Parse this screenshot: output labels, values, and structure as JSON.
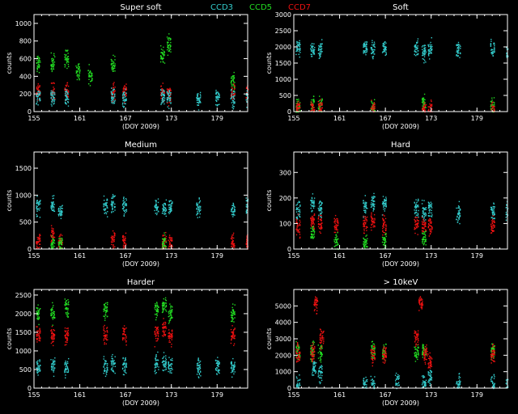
{
  "legend": [
    {
      "label": "CCD3",
      "color": "#33cccc"
    },
    {
      "label": "CCD5",
      "color": "#22dd22"
    },
    {
      "label": "CCD7",
      "color": "#ee1111"
    }
  ],
  "chart_data": [
    {
      "type": "scatter",
      "title": "Super soft",
      "xlabel": "(DOY 2009)",
      "ylabel": "counts",
      "xlim": [
        155,
        183
      ],
      "ylim": [
        0,
        1100
      ],
      "xticks": [
        155,
        161,
        167,
        173,
        179
      ],
      "yticks": [
        0,
        200,
        400,
        600,
        800,
        1000
      ],
      "series": [
        {
          "name": "CCD5",
          "color": "#22dd22",
          "points": [
            [
              155.5,
              560
            ],
            [
              157.4,
              560
            ],
            [
              159.2,
              600
            ],
            [
              160.7,
              460
            ],
            [
              162.3,
              420
            ],
            [
              165.3,
              520
            ],
            [
              171.8,
              650
            ],
            [
              172.6,
              760
            ],
            [
              181.0,
              330
            ]
          ]
        },
        {
          "name": "CCD7",
          "color": "#ee1111",
          "points": [
            [
              155.5,
              230
            ],
            [
              157.4,
              220
            ],
            [
              159.2,
              230
            ],
            [
              165.3,
              230
            ],
            [
              166.8,
              210
            ],
            [
              171.8,
              220
            ],
            [
              172.6,
              200
            ],
            [
              181.0,
              230
            ],
            [
              183.0,
              230
            ]
          ]
        },
        {
          "name": "CCD3",
          "color": "#33cccc",
          "points": [
            [
              155.5,
              180
            ],
            [
              157.4,
              170
            ],
            [
              159.2,
              170
            ],
            [
              165.3,
              180
            ],
            [
              166.8,
              160
            ],
            [
              171.8,
              170
            ],
            [
              172.6,
              170
            ],
            [
              176.5,
              150
            ],
            [
              179.0,
              150
            ],
            [
              181.0,
              150
            ],
            [
              183.0,
              160
            ]
          ]
        }
      ]
    },
    {
      "type": "scatter",
      "title": "Soft",
      "xlabel": "(DOY 2009)",
      "ylabel": "counts",
      "xlim": [
        155,
        183
      ],
      "ylim": [
        0,
        3000
      ],
      "xticks": [
        155,
        161,
        167,
        173,
        179
      ],
      "yticks": [
        0,
        500,
        1000,
        1500,
        2000,
        2500,
        3000
      ],
      "series": [
        {
          "name": "CCD3",
          "color": "#33cccc",
          "points": [
            [
              155.5,
              1950
            ],
            [
              157.4,
              1900
            ],
            [
              158.4,
              1950
            ],
            [
              164.3,
              2000
            ],
            [
              165.3,
              1950
            ],
            [
              166.8,
              1950
            ],
            [
              171.0,
              1950
            ],
            [
              172.0,
              1850
            ],
            [
              172.8,
              1950
            ],
            [
              176.5,
              1900
            ],
            [
              181.0,
              1950
            ],
            [
              183.0,
              1900
            ]
          ]
        },
        {
          "name": "CCD5",
          "color": "#22dd22",
          "points": [
            [
              155.5,
              100
            ],
            [
              157.4,
              250
            ],
            [
              158.4,
              200
            ],
            [
              165.3,
              150
            ],
            [
              172.0,
              200
            ],
            [
              181.0,
              150
            ]
          ]
        },
        {
          "name": "CCD7",
          "color": "#ee1111",
          "points": [
            [
              155.5,
              50
            ],
            [
              157.4,
              100
            ],
            [
              158.4,
              80
            ],
            [
              165.3,
              80
            ],
            [
              172.0,
              100
            ],
            [
              172.8,
              80
            ],
            [
              181.0,
              50
            ]
          ]
        }
      ]
    },
    {
      "type": "scatter",
      "title": "Medium",
      "xlabel": "(DOY 2009)",
      "ylabel": "counts",
      "xlim": [
        155,
        183
      ],
      "ylim": [
        0,
        1800
      ],
      "xticks": [
        155,
        161,
        167,
        173,
        179
      ],
      "yticks": [
        0,
        500,
        1000,
        1500
      ],
      "series": [
        {
          "name": "CCD3",
          "color": "#33cccc",
          "points": [
            [
              155.5,
              800
            ],
            [
              157.4,
              850
            ],
            [
              158.4,
              700
            ],
            [
              164.3,
              800
            ],
            [
              165.3,
              850
            ],
            [
              166.8,
              800
            ],
            [
              171.0,
              800
            ],
            [
              172.0,
              750
            ],
            [
              172.8,
              800
            ],
            [
              176.5,
              750
            ],
            [
              181.0,
              750
            ],
            [
              183.0,
              800
            ]
          ]
        },
        {
          "name": "CCD7",
          "color": "#ee1111",
          "points": [
            [
              155.5,
              130
            ],
            [
              157.4,
              300
            ],
            [
              158.4,
              150
            ],
            [
              165.3,
              150
            ],
            [
              166.8,
              150
            ],
            [
              172.0,
              150
            ],
            [
              172.8,
              130
            ],
            [
              181.0,
              130
            ],
            [
              183.0,
              130
            ]
          ]
        },
        {
          "name": "CCD5",
          "color": "#22dd22",
          "points": [
            [
              157.4,
              120
            ],
            [
              158.4,
              100
            ],
            [
              172.0,
              100
            ]
          ]
        }
      ]
    },
    {
      "type": "scatter",
      "title": "Hard",
      "xlabel": "(DOY 2009)",
      "ylabel": "counts",
      "xlim": [
        155,
        183
      ],
      "ylim": [
        0,
        380
      ],
      "xticks": [
        155,
        161,
        167,
        173,
        179
      ],
      "yticks": [
        0,
        100,
        200,
        300
      ],
      "series": [
        {
          "name": "CCD3",
          "color": "#33cccc",
          "points": [
            [
              155.5,
              150
            ],
            [
              157.4,
              180
            ],
            [
              158.4,
              160
            ],
            [
              164.3,
              170
            ],
            [
              165.3,
              180
            ],
            [
              166.8,
              180
            ],
            [
              171.0,
              160
            ],
            [
              172.0,
              150
            ],
            [
              172.8,
              160
            ],
            [
              176.5,
              140
            ],
            [
              181.0,
              150
            ],
            [
              183.0,
              150
            ]
          ]
        },
        {
          "name": "CCD7",
          "color": "#ee1111",
          "points": [
            [
              155.5,
              90
            ],
            [
              157.4,
              110
            ],
            [
              158.4,
              100
            ],
            [
              160.5,
              100
            ],
            [
              164.3,
              100
            ],
            [
              165.3,
              110
            ],
            [
              166.8,
              100
            ],
            [
              171.0,
              100
            ],
            [
              172.0,
              90
            ],
            [
              172.8,
              90
            ],
            [
              181.0,
              90
            ]
          ]
        },
        {
          "name": "CCD5",
          "color": "#22dd22",
          "points": [
            [
              157.4,
              60
            ],
            [
              160.5,
              30
            ],
            [
              164.3,
              30
            ],
            [
              166.8,
              30
            ],
            [
              172.0,
              40
            ]
          ]
        }
      ]
    },
    {
      "type": "scatter",
      "title": "Harder",
      "xlabel": "(DOY 2009)",
      "ylabel": "counts",
      "xlim": [
        155,
        183
      ],
      "ylim": [
        0,
        2650
      ],
      "xticks": [
        155,
        161,
        167,
        173,
        179
      ],
      "yticks": [
        0,
        500,
        1000,
        1500,
        2000,
        2500
      ],
      "series": [
        {
          "name": "CCD5",
          "color": "#22dd22",
          "points": [
            [
              155.5,
              2000
            ],
            [
              157.4,
              2050
            ],
            [
              159.2,
              2150
            ],
            [
              164.3,
              2100
            ],
            [
              171.0,
              2100
            ],
            [
              172.0,
              2200
            ],
            [
              172.8,
              2000
            ],
            [
              181.0,
              2000
            ]
          ]
        },
        {
          "name": "CCD7",
          "color": "#ee1111",
          "points": [
            [
              155.5,
              1400
            ],
            [
              157.4,
              1450
            ],
            [
              159.2,
              1400
            ],
            [
              164.3,
              1450
            ],
            [
              166.8,
              1400
            ],
            [
              171.0,
              1450
            ],
            [
              172.0,
              1600
            ],
            [
              172.8,
              1400
            ],
            [
              181.0,
              1400
            ]
          ]
        },
        {
          "name": "CCD3",
          "color": "#33cccc",
          "points": [
            [
              155.5,
              600
            ],
            [
              157.4,
              650
            ],
            [
              159.2,
              600
            ],
            [
              164.3,
              600
            ],
            [
              165.3,
              650
            ],
            [
              166.8,
              650
            ],
            [
              171.0,
              700
            ],
            [
              172.0,
              650
            ],
            [
              172.8,
              600
            ],
            [
              176.5,
              550
            ],
            [
              179.0,
              600
            ],
            [
              181.0,
              600
            ]
          ]
        }
      ]
    },
    {
      "type": "scatter",
      "title": "> 10keV",
      "xlabel": "(DOY 2009)",
      "ylabel": "counts",
      "xlim": [
        155,
        183
      ],
      "ylim": [
        0,
        6000
      ],
      "xticks": [
        155,
        161,
        167,
        173,
        179
      ],
      "yticks": [
        0,
        1000,
        2000,
        3000,
        4000,
        5000
      ],
      "series": [
        {
          "name": "CCD5",
          "color": "#22dd22",
          "points": [
            [
              155.5,
              2300
            ],
            [
              157.4,
              2250
            ],
            [
              158.4,
              2200
            ],
            [
              165.3,
              2300
            ],
            [
              166.8,
              2200
            ],
            [
              171.0,
              2200
            ],
            [
              172.0,
              2300
            ],
            [
              181.0,
              2200
            ]
          ]
        },
        {
          "name": "CCD7",
          "color": "#ee1111",
          "points": [
            [
              155.5,
              2050
            ],
            [
              157.4,
              2150
            ],
            [
              157.8,
              5200
            ],
            [
              158.6,
              3000
            ],
            [
              165.3,
              2100
            ],
            [
              166.8,
              2000
            ],
            [
              171.0,
              3100
            ],
            [
              171.6,
              5200
            ],
            [
              172.2,
              2100
            ],
            [
              172.8,
              1600
            ],
            [
              181.0,
              2050
            ]
          ]
        },
        {
          "name": "CCD3",
          "color": "#33cccc",
          "points": [
            [
              155.5,
              200
            ],
            [
              157.6,
              1200
            ],
            [
              158.4,
              900
            ],
            [
              164.3,
              300
            ],
            [
              165.3,
              200
            ],
            [
              168.5,
              400
            ],
            [
              172.0,
              350
            ],
            [
              172.8,
              700
            ],
            [
              176.5,
              300
            ],
            [
              181.0,
              250
            ],
            [
              183.0,
              200
            ]
          ]
        }
      ]
    }
  ]
}
